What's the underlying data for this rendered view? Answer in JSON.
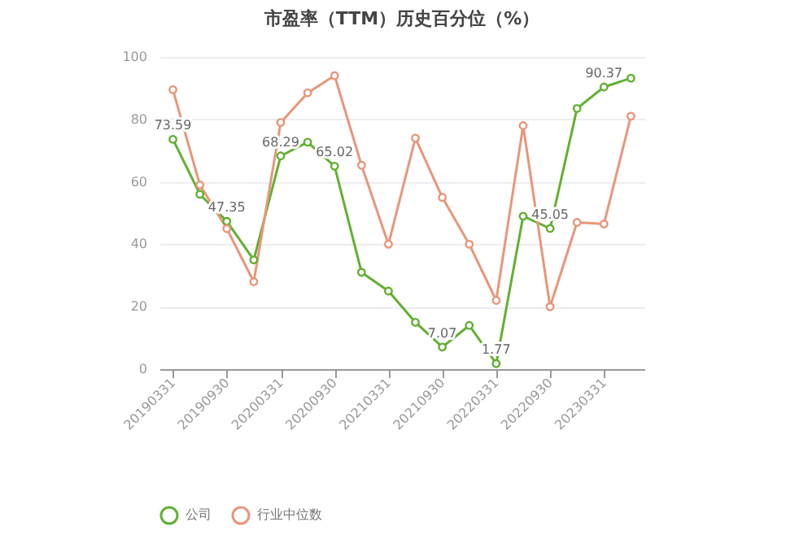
{
  "chart_data": {
    "type": "line",
    "title": "市盈率（TTM）历史百分位（%）",
    "categories": [
      "20190331",
      null,
      "20190930",
      null,
      "20200331",
      null,
      "20200930",
      null,
      "20210331",
      null,
      "20210930",
      null,
      "20220331",
      null,
      "20220930",
      null,
      "20230331",
      null
    ],
    "series": [
      {
        "name": "公司",
        "color": "#62b032",
        "values": [
          73.59,
          56,
          47.35,
          35,
          68.29,
          72.7,
          65.02,
          31,
          25,
          15,
          7.07,
          14,
          1.77,
          49,
          45.05,
          83.5,
          90.37,
          93.2
        ],
        "value_labels": [
          "73.59",
          null,
          "47.35",
          null,
          "68.29",
          null,
          "65.02",
          null,
          null,
          null,
          "7.07",
          null,
          "1.77",
          null,
          "45.05",
          null,
          "90.37",
          null
        ]
      },
      {
        "name": "行业中位数",
        "color": "#e8967a",
        "values": [
          89.5,
          59,
          45,
          28,
          79,
          88.5,
          94,
          65.3,
          40,
          74,
          55,
          40,
          22,
          78,
          20,
          47,
          46.5,
          81
        ]
      }
    ],
    "ylim": [
      0,
      100
    ],
    "yticks": [
      0,
      20,
      40,
      60,
      80,
      100
    ],
    "grid": "y",
    "legend": "bottom",
    "marker": "circle",
    "line_style": "solid"
  }
}
